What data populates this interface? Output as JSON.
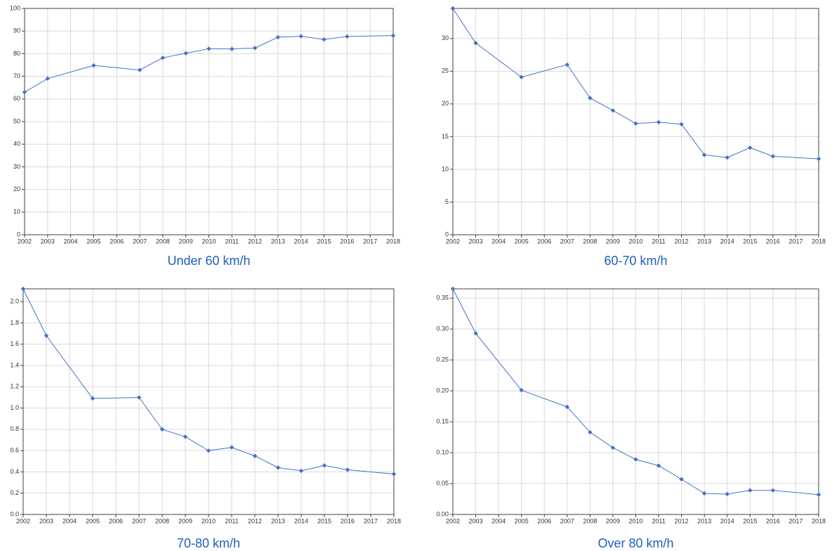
{
  "chart_data": [
    {
      "type": "line",
      "title": "Under 60 km/h",
      "color": "#4472c4",
      "grid": true,
      "x": [
        2002,
        2003,
        2005,
        2007,
        2008,
        2009,
        2010,
        2011,
        2012,
        2013,
        2014,
        2015,
        2016,
        2018
      ],
      "values": [
        63,
        69,
        74.8,
        72.8,
        78.2,
        80.2,
        82.2,
        82.1,
        82.5,
        87.3,
        87.7,
        86.3,
        87.6,
        88
      ],
      "xlim": [
        2002,
        2018
      ],
      "xticks": [
        2002,
        2003,
        2004,
        2005,
        2006,
        2007,
        2008,
        2009,
        2010,
        2011,
        2012,
        2013,
        2014,
        2015,
        2016,
        2017,
        2018
      ],
      "ylim": [
        0,
        100
      ],
      "yticks": [
        0,
        10,
        20,
        30,
        40,
        50,
        60,
        70,
        80,
        90,
        100
      ]
    },
    {
      "type": "line",
      "title": "60-70 km/h",
      "color": "#4472c4",
      "grid": true,
      "x": [
        2002,
        2003,
        2005,
        2007,
        2008,
        2009,
        2010,
        2011,
        2012,
        2013,
        2014,
        2015,
        2016,
        2018
      ],
      "values": [
        34.6,
        29.3,
        24.1,
        26.0,
        20.9,
        19.0,
        17.0,
        17.2,
        16.9,
        12.2,
        11.8,
        13.3,
        12.0,
        11.6
      ],
      "xlim": [
        2002,
        2018
      ],
      "xticks": [
        2002,
        2003,
        2004,
        2005,
        2006,
        2007,
        2008,
        2009,
        2010,
        2011,
        2012,
        2013,
        2014,
        2015,
        2016,
        2017,
        2018
      ],
      "ylim": [
        0,
        34.6
      ],
      "yticks": [
        0,
        5,
        10,
        15,
        20,
        25,
        30
      ]
    },
    {
      "type": "line",
      "title": "70-80 km/h",
      "color": "#4472c4",
      "grid": true,
      "x": [
        2002,
        2003,
        2005,
        2007,
        2008,
        2009,
        2010,
        2011,
        2012,
        2013,
        2014,
        2015,
        2016,
        2018
      ],
      "values": [
        2.12,
        1.68,
        1.09,
        1.1,
        0.8,
        0.73,
        0.6,
        0.63,
        0.55,
        0.44,
        0.41,
        0.46,
        0.42,
        0.38
      ],
      "xlim": [
        2002,
        2018
      ],
      "xticks": [
        2002,
        2003,
        2004,
        2005,
        2006,
        2007,
        2008,
        2009,
        2010,
        2011,
        2012,
        2013,
        2014,
        2015,
        2016,
        2017,
        2018
      ],
      "ylim": [
        0,
        2.12
      ],
      "yticks": [
        {
          "value": 0,
          "label": "0.0"
        },
        0.2,
        0.4,
        0.6,
        0.8,
        {
          "value": 1,
          "label": "1.0"
        },
        1.2,
        1.4,
        1.6,
        1.8,
        {
          "value": 2,
          "label": "2.0"
        }
      ]
    },
    {
      "type": "line",
      "title": "Over 80 km/h",
      "color": "#4472c4",
      "grid": true,
      "x": [
        2002,
        2003,
        2005,
        2007,
        2008,
        2009,
        2010,
        2011,
        2012,
        2013,
        2014,
        2015,
        2016,
        2018
      ],
      "values": [
        0.365,
        0.293,
        0.201,
        0.174,
        0.133,
        0.108,
        0.089,
        0.079,
        0.057,
        0.034,
        0.033,
        0.039,
        0.039,
        0.032
      ],
      "xlim": [
        2002,
        2018
      ],
      "xticks": [
        2002,
        2003,
        2004,
        2005,
        2006,
        2007,
        2008,
        2009,
        2010,
        2011,
        2012,
        2013,
        2014,
        2015,
        2016,
        2017,
        2018
      ],
      "ylim": [
        0,
        0.365
      ],
      "yticks": [
        {
          "value": 0,
          "label": "0.00"
        },
        0.05,
        {
          "value": 0.1,
          "label": "0.10"
        },
        0.15,
        {
          "value": 0.2,
          "label": "0.20"
        },
        0.25,
        {
          "value": 0.3,
          "label": "0.30"
        },
        0.35
      ]
    }
  ]
}
